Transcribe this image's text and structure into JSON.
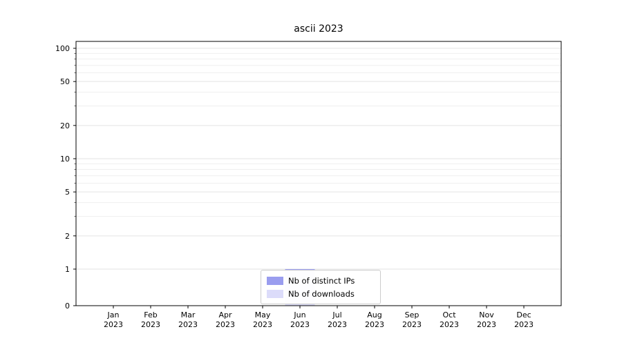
{
  "title": "ascii 2023",
  "legend": {
    "items": [
      {
        "label": "Nb of distinct IPs",
        "color": "#9a9def"
      },
      {
        "label": "Nb of downloads",
        "color": "#dcdcfa"
      }
    ]
  },
  "chart_data": {
    "type": "bar",
    "title": "ascii 2023",
    "categories": [
      "Jan 2023",
      "Feb 2023",
      "Mar 2023",
      "Apr 2023",
      "May 2023",
      "Jun 2023",
      "Jul 2023",
      "Aug 2023",
      "Sep 2023",
      "Oct 2023",
      "Nov 2023",
      "Dec 2023"
    ],
    "series": [
      {
        "name": "Nb of distinct IPs",
        "color": "#9a9def",
        "values": [
          0,
          0,
          0,
          0,
          0,
          1,
          0,
          0,
          0,
          0,
          0,
          0
        ]
      },
      {
        "name": "Nb of downloads",
        "color": "#dcdcfa",
        "values": [
          0,
          0,
          0,
          0,
          0,
          1,
          0,
          0,
          0,
          0,
          0,
          0
        ]
      }
    ],
    "xlabel": "",
    "ylabel": "",
    "y_scale": "symlog",
    "y_ticks": [
      0,
      1,
      2,
      5,
      10,
      20,
      50,
      100
    ],
    "y_minor_ticks": [
      3,
      4,
      6,
      7,
      8,
      9,
      30,
      40,
      60,
      70,
      80,
      90
    ],
    "ylim": [
      0,
      110
    ],
    "grid": "horizontal",
    "legend_position": "lower center"
  }
}
